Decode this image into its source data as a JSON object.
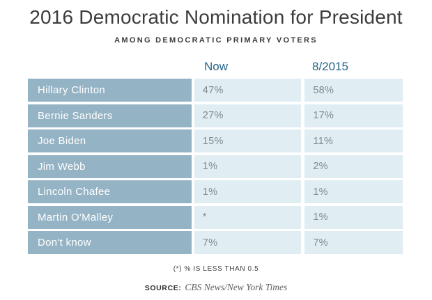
{
  "title": "2016 Democratic Nomination for President",
  "subtitle": "AMONG DEMOCRATIC PRIMARY VOTERS",
  "columns": {
    "now": "Now",
    "aug2015": "8/2015"
  },
  "table": {
    "rows": [
      {
        "candidate": "Hillary Clinton",
        "now": "47%",
        "aug2015": "58%"
      },
      {
        "candidate": "Bernie Sanders",
        "now": "27%",
        "aug2015": "17%"
      },
      {
        "candidate": "Joe Biden",
        "now": "15%",
        "aug2015": "11%"
      },
      {
        "candidate": "Jim Webb",
        "now": "1%",
        "aug2015": "2%"
      },
      {
        "candidate": "Lincoln Chafee",
        "now": "1%",
        "aug2015": "1%"
      },
      {
        "candidate": "Martin O'Malley",
        "now": "*",
        "aug2015": "1%"
      },
      {
        "candidate": "Don't know",
        "now": "7%",
        "aug2015": "7%"
      }
    ]
  },
  "footnote": "(*) % IS LESS THAN 0.5",
  "source": {
    "label": "SOURCE:",
    "text": "CBS News/New York Times"
  },
  "colors": {
    "label_cell_bg": "#94b3c4",
    "value_cell_bg": "#e0edf2",
    "header_blue": "#26648b",
    "title_text": "#3c3c3c",
    "value_text": "#7f8a90"
  },
  "chart_data": {
    "type": "table",
    "title": "2016 Democratic Nomination for President",
    "subtitle": "AMONG DEMOCRATIC PRIMARY VOTERS",
    "categories": [
      "Hillary Clinton",
      "Bernie Sanders",
      "Joe Biden",
      "Jim Webb",
      "Lincoln Chafee",
      "Martin O'Malley",
      "Don't know"
    ],
    "series": [
      {
        "name": "Now",
        "values": [
          47,
          27,
          15,
          1,
          1,
          null,
          7
        ],
        "display": [
          "47%",
          "27%",
          "15%",
          "1%",
          "1%",
          "*",
          "7%"
        ]
      },
      {
        "name": "8/2015",
        "values": [
          58,
          17,
          11,
          2,
          1,
          1,
          7
        ],
        "display": [
          "58%",
          "17%",
          "11%",
          "2%",
          "1%",
          "1%",
          "7%"
        ]
      }
    ],
    "footnote": "(*) % IS LESS THAN 0.5",
    "source": "CBS News/New York Times",
    "legend_position": "none",
    "grid": false
  }
}
